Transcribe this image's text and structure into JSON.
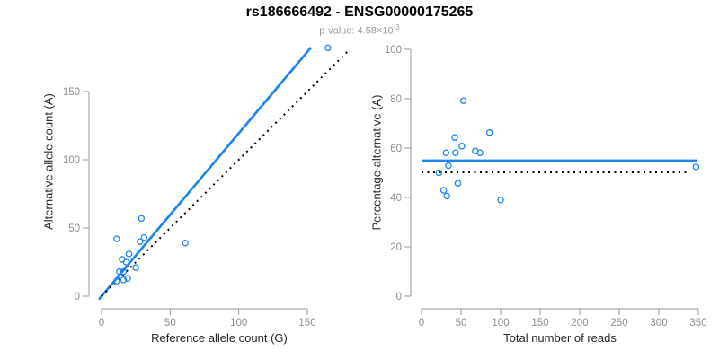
{
  "title": "rs186666492 - ENSG00000175265",
  "subtitle": {
    "prefix": "p-value: 4.58×10",
    "exponent": "-3"
  },
  "colors": {
    "accent_blue": "#1C86EE",
    "dotted_line": "#000000",
    "axis_gray": "#9a9a9a",
    "tick_label_gray": "#8e8e8e",
    "background": "#ffffff"
  },
  "chart_data": [
    {
      "type": "scatter",
      "panel": "left",
      "xlabel": "Reference allele count (G)",
      "ylabel": "Alternative allele count (A)",
      "xticks": [
        0,
        50,
        100,
        150
      ],
      "yticks": [
        0,
        50,
        100,
        150
      ],
      "xlim": [
        0,
        170
      ],
      "ylim": [
        0,
        185
      ],
      "grid": false,
      "points": [
        [
          165,
          182
        ],
        [
          29,
          57
        ],
        [
          11,
          42
        ],
        [
          31,
          43
        ],
        [
          28,
          40
        ],
        [
          61,
          39
        ],
        [
          20,
          31
        ],
        [
          15,
          27
        ],
        [
          18,
          25
        ],
        [
          25,
          21
        ],
        [
          13,
          18
        ],
        [
          16,
          18
        ],
        [
          11,
          11
        ],
        [
          16,
          12
        ],
        [
          19,
          13
        ]
      ],
      "lines": [
        {
          "name": "fitted-ratio",
          "style": "solid",
          "color": "#1C86EE",
          "slope": 1.194,
          "intercept": 0,
          "x_range": [
            -2,
            152.7
          ]
        },
        {
          "name": "identity-y-equals-x",
          "style": "dotted",
          "color": "#000000",
          "slope": 1,
          "intercept": 0,
          "x_range": [
            0,
            179.5
          ]
        }
      ]
    },
    {
      "type": "scatter",
      "panel": "right",
      "xlabel": "Total number of reads",
      "ylabel": "Percentage alternative (A)",
      "xticks": [
        0,
        50,
        100,
        150,
        200,
        250,
        300,
        350
      ],
      "yticks": [
        0,
        20,
        40,
        60,
        80,
        100
      ],
      "xlim": [
        0,
        355
      ],
      "ylim": [
        0,
        100
      ],
      "grid": false,
      "points": [
        [
          347,
          52.4
        ],
        [
          86,
          66.3
        ],
        [
          53,
          79.2
        ],
        [
          74,
          58.1
        ],
        [
          68,
          58.8
        ],
        [
          100,
          39.0
        ],
        [
          51,
          60.8
        ],
        [
          42,
          64.3
        ],
        [
          43,
          58.1
        ],
        [
          46,
          45.7
        ],
        [
          31,
          58.1
        ],
        [
          34,
          52.9
        ],
        [
          22,
          50.0
        ],
        [
          28,
          42.9
        ],
        [
          32,
          40.6
        ]
      ],
      "lines": [
        {
          "name": "mean-percentage",
          "style": "solid",
          "color": "#1C86EE",
          "y": 54.9,
          "x_range": [
            0,
            348
          ]
        },
        {
          "name": "expected-50-percent",
          "style": "dotted",
          "color": "#000000",
          "y": 50.2,
          "x_range": [
            0,
            339
          ]
        }
      ]
    }
  ]
}
